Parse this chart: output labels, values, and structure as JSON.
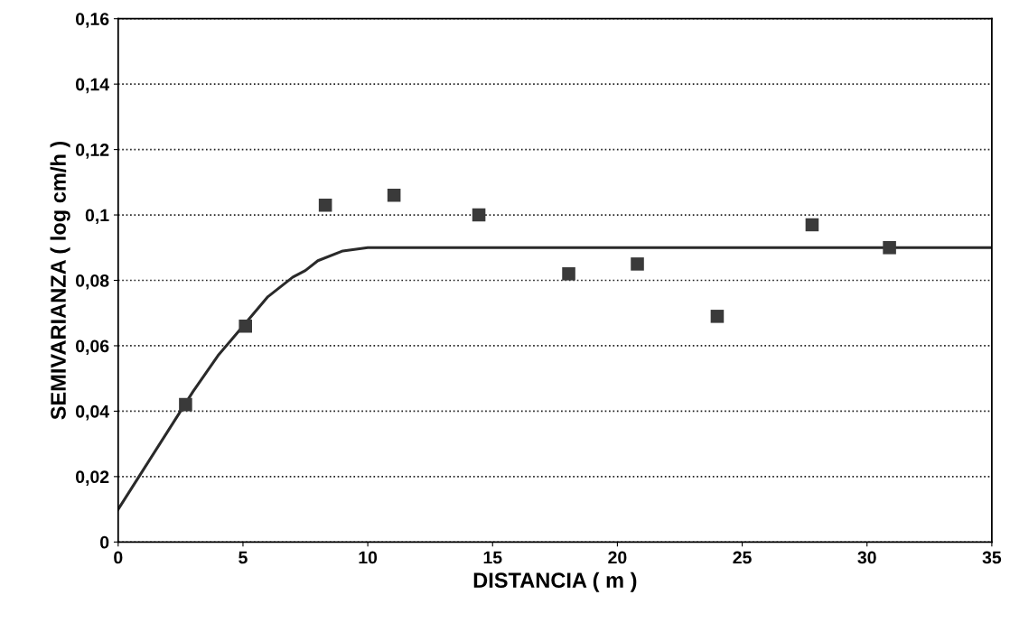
{
  "chart_data": {
    "type": "scatter",
    "xlabel": "DISTANCIA ( m )",
    "ylabel": "SEMIVARIANZA ( log cm/h )",
    "xlim": [
      0,
      35
    ],
    "xticks": [
      0,
      5,
      10,
      15,
      20,
      25,
      30,
      35
    ],
    "ylim": [
      0,
      0.16
    ],
    "yticks": [
      {
        "value": 0,
        "label": "0"
      },
      {
        "value": 0.02,
        "label": "0,02"
      },
      {
        "value": 0.04,
        "label": "0,04"
      },
      {
        "value": 0.06,
        "label": "0,06"
      },
      {
        "value": 0.08,
        "label": "0,08"
      },
      {
        "value": 0.1,
        "label": "0,1"
      },
      {
        "value": 0.12,
        "label": "0,12"
      },
      {
        "value": 0.14,
        "label": "0,14"
      },
      {
        "value": 0.16,
        "label": "0,16"
      }
    ],
    "grid": "y",
    "series": [
      {
        "marker": "square",
        "color": "#3a3a3a",
        "x": [
          2.7,
          5.1,
          8.3,
          11.05,
          14.45,
          18.05,
          20.8,
          24.0,
          27.8,
          30.9
        ],
        "values": [
          0.042,
          0.066,
          0.103,
          0.106,
          0.1,
          0.082,
          0.085,
          0.069,
          0.097,
          0.09
        ]
      },
      {
        "type": "line",
        "color": "#2a2a2a",
        "x": [
          0,
          1,
          2,
          2.5,
          3,
          4,
          5,
          6,
          7,
          7.5,
          8,
          9,
          10,
          15,
          20,
          25,
          30,
          35
        ],
        "values": [
          0.01,
          0.022,
          0.034,
          0.04,
          0.046,
          0.057,
          0.066,
          0.075,
          0.081,
          0.083,
          0.086,
          0.089,
          0.09,
          0.09,
          0.09,
          0.09,
          0.09,
          0.09
        ]
      }
    ]
  }
}
